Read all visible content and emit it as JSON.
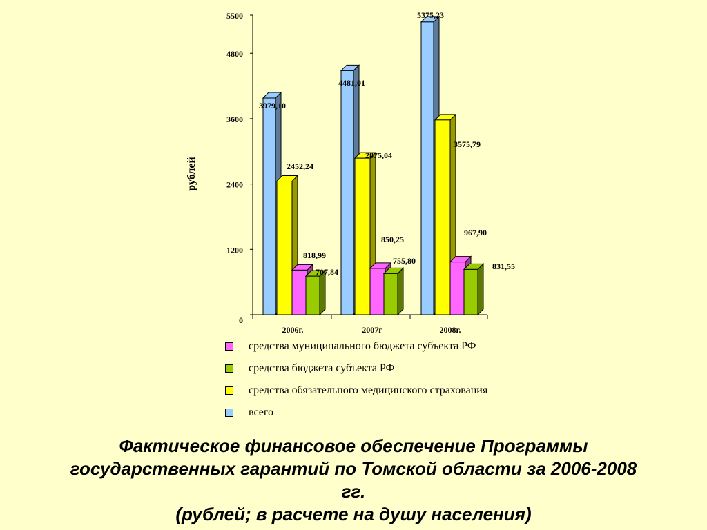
{
  "chart_data": {
    "type": "bar",
    "categories": [
      "2006г.",
      "2007г",
      "2008г."
    ],
    "series": [
      {
        "name": "всего",
        "values": [
          3979.1,
          4481.01,
          5375.23
        ],
        "labels": [
          "3979,10",
          "4481,01",
          "5375,23"
        ],
        "color": "#99CCFF"
      },
      {
        "name": "средства обязательного медицинского страхования",
        "values": [
          2452.24,
          2875.04,
          3575.79
        ],
        "labels": [
          "2452,24",
          "2875,04",
          "3575,79"
        ],
        "color": "#FFFF00"
      },
      {
        "name": "средства муниципального бюджета субъекта РФ",
        "values": [
          818.99,
          850.25,
          967.9
        ],
        "labels": [
          "818,99",
          "850,25",
          "967,90"
        ],
        "color": "#FF66FF"
      },
      {
        "name": "средства бюджета субъекта РФ",
        "values": [
          707.84,
          755.8,
          831.55
        ],
        "labels": [
          "707,84",
          "755,80",
          "831,55"
        ],
        "color": "#99CC00"
      }
    ],
    "y_ticks": [
      0,
      1200,
      2400,
      3600,
      4800,
      5500
    ],
    "ylabel": "рублей",
    "xlabel": "",
    "ylim": [
      0,
      5500
    ],
    "grid": false,
    "legend_position": "bottom"
  },
  "legend": [
    {
      "label": "средства муниципального бюджета субъекта РФ",
      "color": "#FF66FF"
    },
    {
      "label": "средства бюджета субъекта РФ",
      "color": "#99CC00"
    },
    {
      "label": "средства обязательного медицинского страхования",
      "color": "#FFFF00"
    },
    {
      "label": "всего",
      "color": "#99CCFF"
    }
  ],
  "caption": {
    "line1": "Фактическое финансовое обеспечение Программы",
    "line2": "государственных гарантий по Томской области за 2006-2008",
    "line3": "гг.",
    "line4": "(рублей; в расчете на душу населения)"
  }
}
